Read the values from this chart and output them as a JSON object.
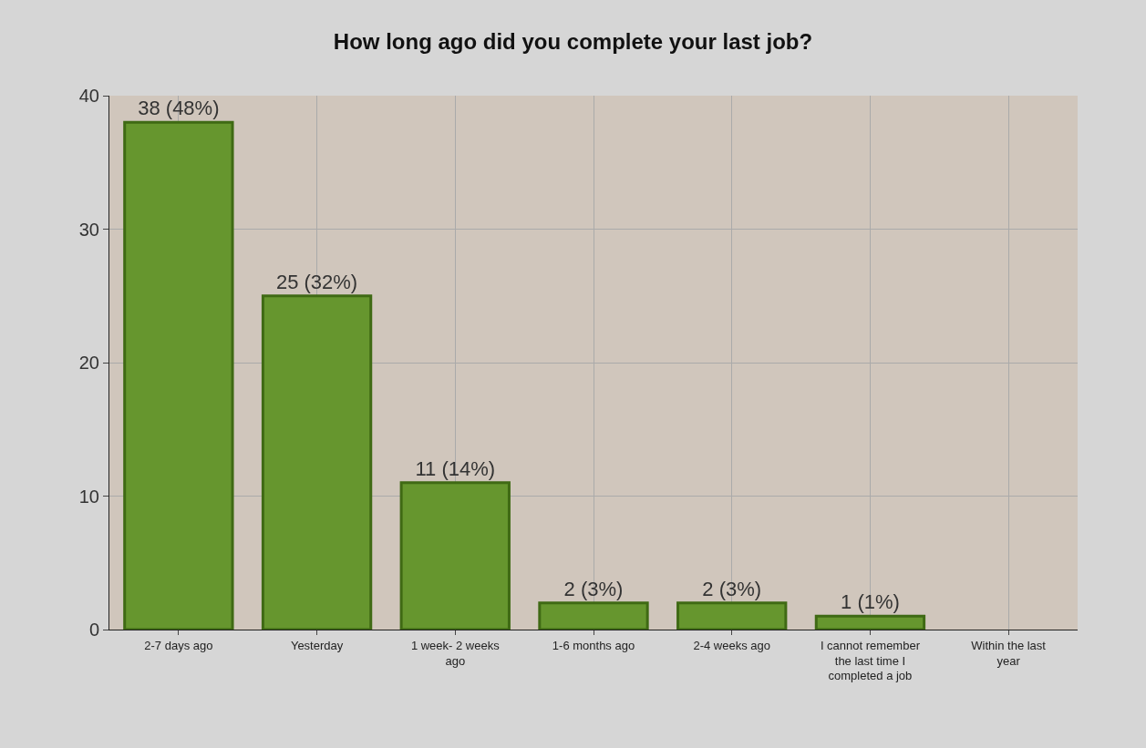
{
  "chart_data": {
    "type": "bar",
    "title": "How long ago did you complete your last job?",
    "categories": [
      "2-7 days ago",
      "Yesterday",
      "1 week- 2 weeks ago",
      "1-6 months ago",
      "2-4 weeks ago",
      "I cannot remember the last time I completed a job",
      "Within the last year"
    ],
    "values": [
      38,
      25,
      11,
      2,
      2,
      1,
      0
    ],
    "value_labels": [
      "38 (48%)",
      "25 (32%)",
      "11 (14%)",
      "2 (3%)",
      "2 (3%)",
      "1 (1%)",
      null
    ],
    "color": "#66962e",
    "ylim": [
      0,
      40
    ],
    "yticks": [
      0,
      10,
      20,
      30,
      40
    ],
    "grid": true
  }
}
